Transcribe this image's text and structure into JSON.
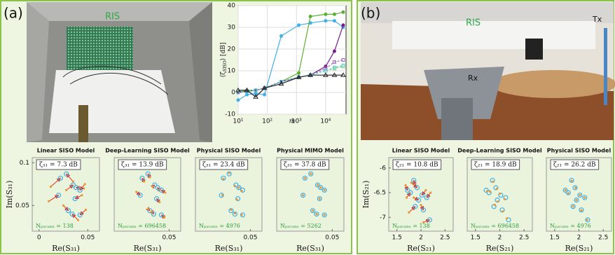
{
  "panels": [
    {
      "label": "(a)",
      "photo_labels": [
        "RIS"
      ]
    },
    {
      "label": "(b)",
      "photo_labels": [
        "RIS",
        "Tx",
        "Rx"
      ]
    }
  ],
  "chart_data": [
    {
      "type": "line",
      "xscale": "log",
      "xlim": [
        10,
        50000
      ],
      "ylim": [
        -10,
        40
      ],
      "grid": true,
      "xticks": [
        {
          "value": 10,
          "label": "10¹"
        },
        {
          "value": 100,
          "label": "10²"
        },
        {
          "value": 1000,
          "label": "10³"
        },
        {
          "value": 10000,
          "label": "10⁴"
        }
      ],
      "yticks": [
        -10,
        0,
        10,
        20,
        30,
        40
      ],
      "xlabel": "m",
      "ylabel": [
        "⟨ζ",
        "SISO",
        "⟩ [dB]"
      ],
      "x": [
        10,
        20,
        40,
        80,
        300,
        1200,
        3000,
        10000,
        20000,
        40000
      ],
      "series": [
        {
          "color": "#3fb0e8",
          "marker": "dot",
          "dash": false,
          "values": [
            -3.5,
            -1,
            -0.5,
            -1,
            26,
            31,
            32,
            33,
            33,
            30
          ]
        },
        {
          "color": "#5cb030",
          "marker": "dot",
          "dash": false,
          "values": [
            0,
            1,
            1,
            2,
            5,
            9,
            35,
            36,
            36,
            37
          ]
        },
        {
          "color": "#7a1f8a",
          "marker": "dot",
          "dash": false,
          "values": [
            0,
            0.5,
            1,
            2,
            5,
            7,
            8,
            12,
            19,
            31
          ]
        },
        {
          "color": "#9b6bc0",
          "marker": "square",
          "dash": true,
          "values": [
            0,
            0.5,
            1,
            2,
            5,
            7,
            8,
            11,
            14,
            15
          ]
        },
        {
          "color": "#8fd06a",
          "marker": "square",
          "dash": true,
          "values": [
            0,
            0.5,
            1,
            2,
            5,
            7,
            8,
            10,
            11,
            12
          ]
        },
        {
          "color": "#5ad0d8",
          "marker": "square",
          "dash": true,
          "values": [
            0,
            0.5,
            1,
            2,
            5,
            7,
            8,
            10,
            11.5,
            12.5
          ]
        },
        {
          "color": "#222222",
          "marker": "triangle",
          "dash": false,
          "values": [
            1,
            1,
            -2,
            2,
            4,
            7,
            8,
            8,
            8,
            8
          ]
        }
      ]
    },
    {
      "type": "scatter",
      "panel": 0,
      "title": "Linear SISO Model",
      "annotation": "ζ₃₁ = 7.3 dB",
      "note": "Nₚₐᵣₐₘₛ = 138",
      "xlabel": "Re(S₃₁)",
      "ylabel": "Im(S₃₁)",
      "xlim": [
        -0.007,
        0.062
      ],
      "ylim": [
        0.02,
        0.106
      ],
      "xticks": [
        0,
        0.05
      ],
      "yticks": [
        0.05,
        0.1
      ],
      "arrow_color": "#e03020",
      "series": [
        {
          "color": "#3fb0e8",
          "marker": "open-circle",
          "x": [
            0.022,
            0.028,
            0.035,
            0.038,
            0.042,
            0.02,
            0.037,
            0.03,
            0.034,
            0.042
          ],
          "values": [
            0.082,
            0.087,
            0.074,
            0.071,
            0.068,
            0.062,
            0.058,
            0.044,
            0.04,
            0.039
          ]
        },
        {
          "color": "#e8963a",
          "marker": "dot",
          "x": [
            0.012,
            0.035,
            0.028,
            0.046,
            0.047,
            0.01,
            0.044,
            0.025,
            0.04,
            0.048
          ],
          "values": [
            0.072,
            0.078,
            0.068,
            0.07,
            0.075,
            0.055,
            0.062,
            0.05,
            0.033,
            0.045
          ]
        }
      ]
    },
    {
      "type": "scatter",
      "panel": 0,
      "title": "Deep-Learning SISO Model",
      "annotation": "ζ₃₁ = 13.9 dB",
      "note": "Nₚₐᵣₐₘₛ = 696458",
      "xlabel": "Re(S₃₁)",
      "xlim": [
        -0.007,
        0.062
      ],
      "ylim": [
        0.02,
        0.106
      ],
      "xticks": [
        0.05
      ],
      "arrow_color": "#e03020",
      "series": [
        {
          "color": "#3fb0e8",
          "marker": "open-circle",
          "x": [
            0.022,
            0.028,
            0.035,
            0.038,
            0.042,
            0.02,
            0.037,
            0.03,
            0.034,
            0.042
          ],
          "values": [
            0.082,
            0.087,
            0.074,
            0.071,
            0.068,
            0.062,
            0.058,
            0.044,
            0.04,
            0.039
          ]
        },
        {
          "color": "#e8963a",
          "marker": "dot",
          "x": [
            0.024,
            0.03,
            0.033,
            0.04,
            0.046,
            0.016,
            0.04,
            0.028,
            0.032,
            0.045
          ],
          "values": [
            0.078,
            0.083,
            0.072,
            0.068,
            0.065,
            0.066,
            0.054,
            0.046,
            0.043,
            0.036
          ]
        }
      ]
    },
    {
      "type": "scatter",
      "panel": 0,
      "title": "Physical SISO Model",
      "annotation": "ζ₃₁ = 23.4 dB",
      "note": "Nₚₐᵣₐₘₛ = 4976",
      "xlabel": "Re(S₃₁)",
      "xlim": [
        -0.007,
        0.062
      ],
      "ylim": [
        0.02,
        0.106
      ],
      "xticks": [
        0.05
      ],
      "arrow_color": "#e03020",
      "series": [
        {
          "color": "#3fb0e8",
          "marker": "open-circle",
          "x": [
            0.022,
            0.028,
            0.035,
            0.038,
            0.042,
            0.02,
            0.037,
            0.03,
            0.034,
            0.042
          ],
          "values": [
            0.082,
            0.087,
            0.074,
            0.071,
            0.068,
            0.062,
            0.058,
            0.044,
            0.04,
            0.039
          ]
        },
        {
          "color": "#e8963a",
          "marker": "dot",
          "x": [
            0.022,
            0.028,
            0.034,
            0.038,
            0.041,
            0.021,
            0.036,
            0.03,
            0.034,
            0.041
          ],
          "values": [
            0.081,
            0.088,
            0.073,
            0.071,
            0.067,
            0.062,
            0.057,
            0.045,
            0.041,
            0.039
          ]
        }
      ]
    },
    {
      "type": "scatter",
      "panel": 0,
      "title": "Physical MIMO Model",
      "annotation": "ζ₃₁ = 37.8 dB",
      "note": "Nₚₐᵣₐₘₛ = 5262",
      "xlabel": "Re(S₃₁)",
      "xlim": [
        -0.007,
        0.062
      ],
      "ylim": [
        0.02,
        0.106
      ],
      "xticks": [
        0.05
      ],
      "arrow_color": "#e03020",
      "series": [
        {
          "color": "#3fb0e8",
          "marker": "open-circle",
          "x": [
            0.022,
            0.028,
            0.035,
            0.038,
            0.042,
            0.02,
            0.037,
            0.03,
            0.034,
            0.042
          ],
          "values": [
            0.082,
            0.087,
            0.074,
            0.071,
            0.068,
            0.062,
            0.058,
            0.044,
            0.04,
            0.039
          ]
        },
        {
          "color": "#e8963a",
          "marker": "dot",
          "x": [
            0.022,
            0.028,
            0.035,
            0.038,
            0.042,
            0.02,
            0.037,
            0.03,
            0.034,
            0.042
          ],
          "values": [
            0.082,
            0.087,
            0.074,
            0.071,
            0.068,
            0.062,
            0.058,
            0.044,
            0.04,
            0.039
          ]
        }
      ]
    },
    {
      "type": "scatter",
      "panel": 1,
      "title": "Linear SISO Model",
      "annotation": "ζ₂₁ = 10.8 dB",
      "note": "Nₚₐᵣₐₘₛ = 138",
      "xlabel": "Re(S₂₁)",
      "ylabel": "Im(S₂₁)",
      "xlim": [
        1.33,
        2.67
      ],
      "ylim": [
        -7.28,
        -5.79
      ],
      "xticks": [
        1.5,
        2,
        2.5
      ],
      "yticks": [
        -7,
        -6.5,
        -6
      ],
      "arrow_color": "#e03020",
      "series": [
        {
          "color": "#3fb0e8",
          "marker": "open-circle",
          "x": [
            1.85,
            1.92,
            2.02,
            1.78,
            1.95,
            2.12,
            1.88,
            2.05,
            2.18,
            1.72
          ],
          "values": [
            -6.25,
            -6.4,
            -6.55,
            -6.5,
            -6.65,
            -6.6,
            -6.78,
            -6.85,
            -7.05,
            -6.45
          ]
        },
        {
          "color": "#e8963a",
          "marker": "dot",
          "x": [
            1.88,
            1.8,
            2.1,
            1.7,
            1.85,
            2.2,
            1.75,
            2.0,
            2.05,
            1.68
          ],
          "values": [
            -6.35,
            -6.3,
            -6.45,
            -6.6,
            -6.6,
            -6.5,
            -6.9,
            -6.75,
            -7.1,
            -6.35
          ]
        }
      ]
    },
    {
      "type": "scatter",
      "panel": 1,
      "title": "Deep-Learning SISO Model",
      "annotation": "ζ₂₁ = 18.9 dB",
      "note": "Nₚₐᵣₐₘₛ = 696458",
      "xlabel": "Re(S₂₁)",
      "xlim": [
        1.33,
        2.67
      ],
      "ylim": [
        -7.28,
        -5.79
      ],
      "xticks": [
        1.5,
        2,
        2.5
      ],
      "arrow_color": "#e03020",
      "series": [
        {
          "color": "#3fb0e8",
          "marker": "open-circle",
          "x": [
            1.85,
            1.92,
            2.02,
            1.78,
            1.95,
            2.12,
            1.88,
            2.05,
            2.18,
            1.72
          ],
          "values": [
            -6.25,
            -6.4,
            -6.55,
            -6.5,
            -6.65,
            -6.6,
            -6.78,
            -6.85,
            -7.05,
            -6.45
          ]
        },
        {
          "color": "#e8963a",
          "marker": "dot",
          "x": [
            1.86,
            1.94,
            2.0,
            1.8,
            1.96,
            2.1,
            1.9,
            2.06,
            2.15,
            1.74
          ],
          "values": [
            -6.28,
            -6.42,
            -6.52,
            -6.48,
            -6.68,
            -6.63,
            -6.75,
            -6.88,
            -7.02,
            -6.47
          ]
        }
      ]
    },
    {
      "type": "scatter",
      "panel": 1,
      "title": "Physical SISO Model",
      "annotation": "ζ₂₁ = 26.2 dB",
      "note": "Nₚₐᵣₐₘₛ = 4976",
      "xlabel": "Re(S₂₁)",
      "xlim": [
        1.33,
        2.67
      ],
      "ylim": [
        -7.28,
        -5.79
      ],
      "xticks": [
        1.5,
        2,
        2.5
      ],
      "arrow_color": "#e03020",
      "series": [
        {
          "color": "#3fb0e8",
          "marker": "open-circle",
          "x": [
            1.85,
            1.92,
            2.02,
            1.78,
            1.95,
            2.12,
            1.88,
            2.05,
            2.18,
            1.72
          ],
          "values": [
            -6.25,
            -6.4,
            -6.55,
            -6.5,
            -6.65,
            -6.6,
            -6.78,
            -6.85,
            -7.05,
            -6.45
          ]
        },
        {
          "color": "#e8963a",
          "marker": "dot",
          "x": [
            1.85,
            1.93,
            2.02,
            1.78,
            1.95,
            2.12,
            1.88,
            2.05,
            2.17,
            1.72
          ],
          "values": [
            -6.26,
            -6.4,
            -6.55,
            -6.51,
            -6.65,
            -6.6,
            -6.78,
            -6.86,
            -7.05,
            -6.45
          ]
        }
      ]
    }
  ]
}
